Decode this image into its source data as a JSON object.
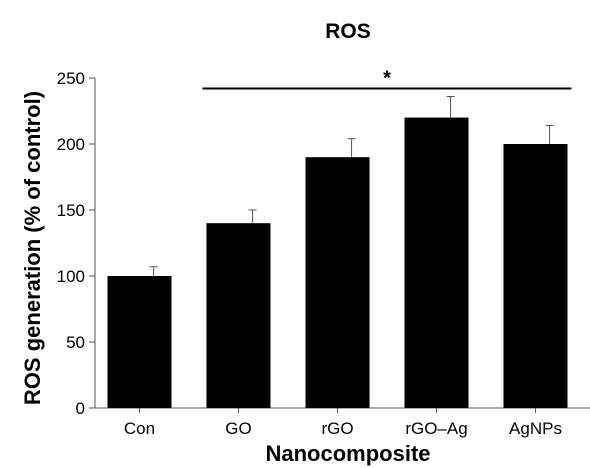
{
  "chart_data": {
    "type": "bar",
    "title": "ROS",
    "xlabel": "Nanocomposite",
    "ylabel": "ROS generation (% of control)",
    "categories": [
      "Con",
      "GO",
      "rGO",
      "rGO–Ag",
      "AgNPs"
    ],
    "values": [
      100,
      140,
      190,
      220,
      200
    ],
    "errors": [
      7,
      10,
      14,
      16,
      14
    ],
    "ylim": [
      0,
      250
    ],
    "yticks": [
      0,
      50,
      100,
      150,
      200,
      250
    ],
    "grid": false,
    "bar_color": "#000000",
    "significance": {
      "label": "*",
      "from_category": "GO",
      "to_category": "AgNPs",
      "y": 242
    }
  }
}
